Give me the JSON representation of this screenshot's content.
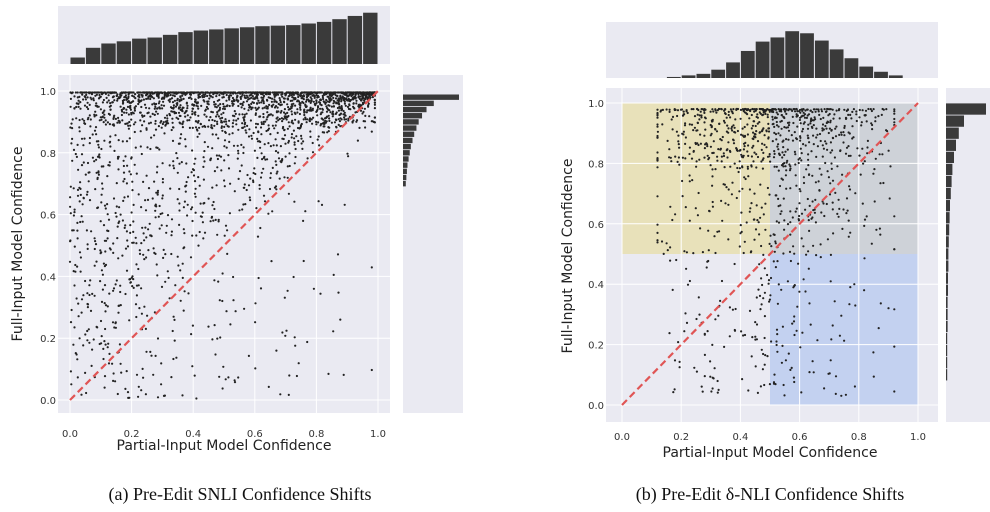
{
  "figure": {
    "panels": [
      {
        "caption": "(a) Pre-Edit SNLI Confidence Shifts",
        "xlabel": "Partial-Input Model Confidence",
        "ylabel": "Full-Input Model Confidence",
        "xticks": [
          "0.0",
          "0.2",
          "0.4",
          "0.6",
          "0.8",
          "1.0"
        ],
        "yticks": [
          "0.0",
          "0.2",
          "0.4",
          "0.6",
          "0.8",
          "1.0"
        ]
      },
      {
        "caption": "(b) Pre-Edit δ-NLI Confidence Shifts",
        "xlabel": "Partial-Input Model Confidence",
        "ylabel": "Full-Input Model Confidence",
        "xticks": [
          "0.0",
          "0.2",
          "0.4",
          "0.6",
          "0.8",
          "1.0"
        ],
        "yticks": [
          "0.0",
          "0.2",
          "0.4",
          "0.6",
          "0.8",
          "1.0"
        ]
      }
    ]
  },
  "chart_data": [
    {
      "type": "scatter",
      "title": "",
      "xlabel": "Partial-Input Model Confidence",
      "ylabel": "Full-Input Model Confidence",
      "xlim": [
        0.0,
        1.0
      ],
      "ylim": [
        0.0,
        1.0
      ],
      "grid": true,
      "reference_line": {
        "from": [
          0,
          0
        ],
        "to": [
          1,
          1
        ],
        "color": "#e05555",
        "style": "dashed"
      },
      "point_color": "#222222",
      "point_density": "dense near y=1.0 across all x; sparse near x=1, y=0",
      "top_histogram": {
        "type": "bar",
        "bins": [
          0.0,
          0.05,
          0.1,
          0.15,
          0.2,
          0.25,
          0.3,
          0.35,
          0.4,
          0.45,
          0.5,
          0.55,
          0.6,
          0.65,
          0.7,
          0.75,
          0.8,
          0.85,
          0.9,
          0.95
        ],
        "values": [
          0.12,
          0.3,
          0.38,
          0.42,
          0.47,
          0.49,
          0.54,
          0.59,
          0.62,
          0.64,
          0.66,
          0.68,
          0.7,
          0.71,
          0.72,
          0.75,
          0.78,
          0.83,
          0.89,
          0.95
        ]
      },
      "right_histogram": {
        "type": "bar",
        "bins_desc": [
          0.98,
          0.96,
          0.94,
          0.92,
          0.9,
          0.88,
          0.86,
          0.84,
          0.82,
          0.8,
          0.78,
          0.76,
          0.74,
          0.72,
          0.7
        ],
        "values": [
          1.0,
          0.55,
          0.42,
          0.34,
          0.28,
          0.24,
          0.2,
          0.17,
          0.14,
          0.12,
          0.1,
          0.08,
          0.07,
          0.06,
          0.05
        ]
      }
    },
    {
      "type": "scatter",
      "title": "",
      "xlabel": "Partial-Input Model Confidence",
      "ylabel": "Full-Input Model Confidence",
      "xlim": [
        0.0,
        1.0
      ],
      "ylim": [
        0.0,
        1.0
      ],
      "grid": true,
      "reference_line": {
        "from": [
          0,
          0
        ],
        "to": [
          1,
          1
        ],
        "color": "#e05555",
        "style": "dashed"
      },
      "regions": [
        {
          "x": [
            0.0,
            0.5
          ],
          "y": [
            0.5,
            1.0
          ],
          "color": "#e8dfb0"
        },
        {
          "x": [
            0.5,
            1.0
          ],
          "y": [
            0.5,
            1.0
          ],
          "color": "#c9ced4"
        },
        {
          "x": [
            0.5,
            1.0
          ],
          "y": [
            0.0,
            0.5
          ],
          "color": "#bcccf0"
        }
      ],
      "point_color": "#222222",
      "point_density": "concentrated x 0.35-0.8, y near 1.0",
      "top_histogram": {
        "type": "bar",
        "bins": [
          0.15,
          0.2,
          0.25,
          0.3,
          0.35,
          0.4,
          0.45,
          0.5,
          0.55,
          0.6,
          0.65,
          0.7,
          0.75,
          0.8,
          0.85,
          0.9
        ],
        "values": [
          0.02,
          0.05,
          0.08,
          0.16,
          0.3,
          0.52,
          0.7,
          0.78,
          0.9,
          0.86,
          0.72,
          0.55,
          0.38,
          0.22,
          0.12,
          0.05
        ]
      },
      "right_histogram": {
        "type": "bar",
        "bins_desc": [
          0.98,
          0.94,
          0.9,
          0.86,
          0.82,
          0.78,
          0.74,
          0.7,
          0.66,
          0.62,
          0.58,
          0.54,
          0.5,
          0.46,
          0.42,
          0.38,
          0.34,
          0.3,
          0.26,
          0.22,
          0.18,
          0.14,
          0.1
        ],
        "values": [
          1.0,
          0.45,
          0.32,
          0.25,
          0.2,
          0.16,
          0.14,
          0.12,
          0.1,
          0.09,
          0.08,
          0.07,
          0.06,
          0.06,
          0.05,
          0.05,
          0.04,
          0.04,
          0.04,
          0.03,
          0.03,
          0.03,
          0.03
        ]
      }
    }
  ]
}
